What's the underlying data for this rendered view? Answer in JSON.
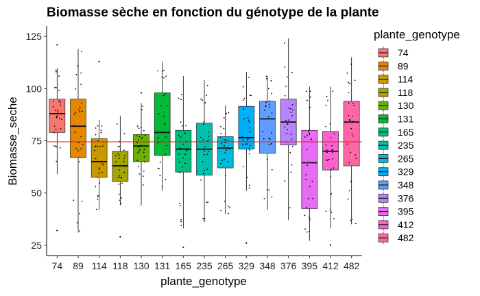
{
  "chart_data": {
    "type": "boxplot",
    "title": "Biomasse sèche en fonction du génotype de la plante",
    "xlabel": "plante_genotype",
    "ylabel": "Biomasse_seche",
    "legend_title": "plante_genotype",
    "legend_position": "right",
    "ylim": [
      20,
      130
    ],
    "yticks": [
      25,
      50,
      75,
      100,
      125
    ],
    "grid": false,
    "reference_line": {
      "y": 74.5,
      "color": "#e41a1c"
    },
    "categories": [
      "74",
      "89",
      "114",
      "118",
      "130",
      "131",
      "165",
      "235",
      "265",
      "329",
      "348",
      "376",
      "395",
      "412",
      "482"
    ],
    "colors": [
      "#F8766D",
      "#E58700",
      "#C99800",
      "#A3A500",
      "#6BB100",
      "#00BA38",
      "#00BF7D",
      "#00C0AF",
      "#00BCD8",
      "#00B0F6",
      "#619CFF",
      "#B983FF",
      "#E76BF3",
      "#FD61D1",
      "#FF67A4"
    ],
    "boxes": [
      {
        "genotype": "74",
        "min": 59,
        "q1": 79,
        "median": 88,
        "q3": 95,
        "max": 110,
        "outliers": [
          32,
          121
        ]
      },
      {
        "genotype": "89",
        "min": 31,
        "q1": 67,
        "median": 82,
        "q3": 95,
        "max": 119,
        "outliers": []
      },
      {
        "genotype": "114",
        "min": 42,
        "q1": 57.5,
        "median": 65,
        "q3": 76,
        "max": 85,
        "outliers": [
          113
        ]
      },
      {
        "genotype": "118",
        "min": 44,
        "q1": 55.5,
        "median": 63,
        "q3": 70,
        "max": 87,
        "outliers": [
          29
        ]
      },
      {
        "genotype": "130",
        "min": 44,
        "q1": 65,
        "median": 72.5,
        "q3": 78,
        "max": 93,
        "outliers": [
          98
        ]
      },
      {
        "genotype": "131",
        "min": 51,
        "q1": 68,
        "median": 79,
        "q3": 98,
        "max": 113,
        "outliers": []
      },
      {
        "genotype": "165",
        "min": 33,
        "q1": 60,
        "median": 71,
        "q3": 80,
        "max": 106,
        "outliers": [
          24
        ]
      },
      {
        "genotype": "235",
        "min": 36,
        "q1": 58.5,
        "median": 71,
        "q3": 83.5,
        "max": 104,
        "outliers": []
      },
      {
        "genotype": "265",
        "min": 40,
        "q1": 62,
        "median": 71.5,
        "q3": 77,
        "max": 92,
        "outliers": []
      },
      {
        "genotype": "329",
        "min": 51,
        "q1": 71,
        "median": 76.5,
        "q3": 91.5,
        "max": 108,
        "outliers": [
          26
        ]
      },
      {
        "genotype": "348",
        "min": 42,
        "q1": 69,
        "median": 85.5,
        "q3": 94,
        "max": 106,
        "outliers": []
      },
      {
        "genotype": "376",
        "min": 37,
        "q1": 73,
        "median": 84,
        "q3": 95,
        "max": 124,
        "outliers": []
      },
      {
        "genotype": "395",
        "min": 27,
        "q1": 42.5,
        "median": 64.5,
        "q3": 80,
        "max": 101,
        "outliers": []
      },
      {
        "genotype": "412",
        "min": 33,
        "q1": 61,
        "median": 70,
        "q3": 79.5,
        "max": 101,
        "outliers": [
          25
        ]
      },
      {
        "genotype": "482",
        "min": 35,
        "q1": 63,
        "median": 84,
        "q3": 94,
        "max": 115,
        "outliers": []
      }
    ]
  }
}
